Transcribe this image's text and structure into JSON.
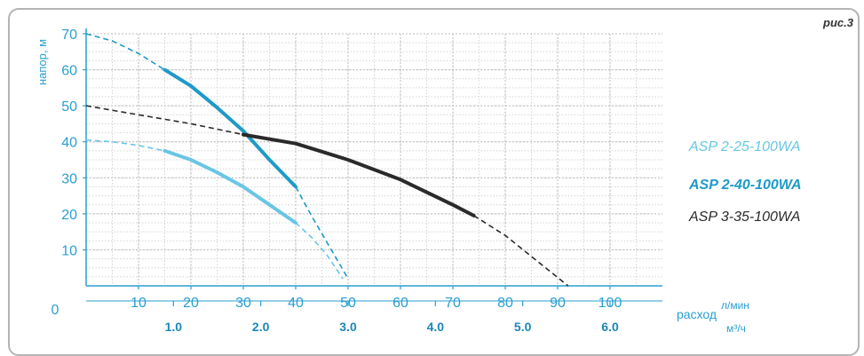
{
  "figure_label": "рис.3",
  "chart_data": {
    "type": "line",
    "ylabel": "напор, м",
    "xlabel": "расход",
    "x_unit_top": "л/мин",
    "x_unit_bottom": "м³/ч",
    "origin_label": "0",
    "x_lmin_range": [
      0,
      110
    ],
    "x_m3h_range": [
      0,
      6.6
    ],
    "ylim": [
      0,
      70
    ],
    "x_ticks_lmin": [
      "10",
      "20",
      "30",
      "40",
      "50",
      "60",
      "70",
      "80",
      "90",
      "100"
    ],
    "x_ticks_m3h": [
      "1.0",
      "2.0",
      "3.0",
      "4.0",
      "5.0",
      "6.0"
    ],
    "y_ticks": [
      "10",
      "20",
      "30",
      "40",
      "50",
      "60",
      "70"
    ],
    "grid": true,
    "legend_position": "right",
    "series": [
      {
        "name": "ASP 2-25-100WA",
        "color": "#69c6e4",
        "solid": [
          [
            15,
            37.5
          ],
          [
            20,
            35
          ],
          [
            25,
            31.5
          ],
          [
            30,
            27.5
          ],
          [
            35,
            22.5
          ],
          [
            40,
            17.5
          ]
        ],
        "dashed_before": [
          [
            0,
            40.5
          ],
          [
            5,
            40
          ],
          [
            10,
            39
          ],
          [
            15,
            37.5
          ]
        ],
        "dashed_after": [
          [
            40,
            17.5
          ],
          [
            43,
            13.5
          ],
          [
            46,
            8.5
          ],
          [
            49,
            2
          ]
        ]
      },
      {
        "name": "ASP 2-40-100WA",
        "color": "#1e9ac8",
        "solid": [
          [
            15,
            60
          ],
          [
            20,
            55.5
          ],
          [
            25,
            49.5
          ],
          [
            30,
            43
          ],
          [
            35,
            35
          ],
          [
            40,
            27.5
          ]
        ],
        "dashed_before": [
          [
            0,
            70
          ],
          [
            5,
            68
          ],
          [
            10,
            64.5
          ],
          [
            15,
            60
          ]
        ],
        "dashed_after": [
          [
            40,
            27.5
          ],
          [
            43,
            19.5
          ],
          [
            46,
            12
          ],
          [
            50,
            2
          ]
        ]
      },
      {
        "name": "ASP 3-35-100WA",
        "color": "#2a2a2a",
        "solid": [
          [
            30,
            42
          ],
          [
            40,
            39.5
          ],
          [
            50,
            35
          ],
          [
            60,
            29.5
          ],
          [
            70,
            22.5
          ],
          [
            74,
            19.5
          ]
        ],
        "dashed_before": [
          [
            0,
            50
          ],
          [
            10,
            47.5
          ],
          [
            20,
            45
          ],
          [
            30,
            42
          ]
        ],
        "dashed_after": [
          [
            74,
            19.5
          ],
          [
            80,
            14
          ],
          [
            86,
            7
          ],
          [
            92,
            0
          ]
        ]
      }
    ]
  }
}
